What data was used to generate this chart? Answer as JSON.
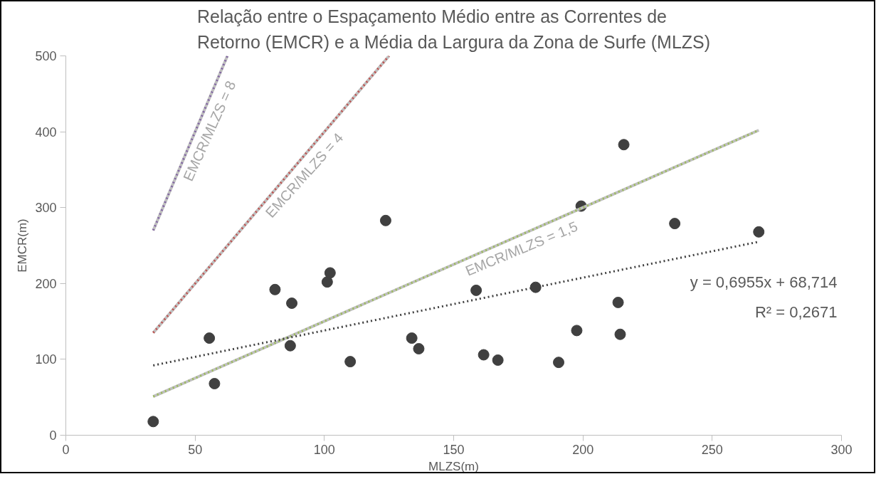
{
  "chart_data": {
    "type": "scatter",
    "title": "Relação entre o Espaçamento Médio entre as Correntes de Retorno (EMCR) e a Média da Largura da Zona de Surfe (MLZS)",
    "xlabel": "MLZS(m)",
    "ylabel": "EMCR(m)",
    "xlim": [
      0,
      300
    ],
    "xticks": [
      0,
      50,
      100,
      150,
      200,
      250,
      300
    ],
    "ylim": [
      0,
      500
    ],
    "yticks": [
      0,
      100,
      200,
      300,
      400,
      500
    ],
    "grid": false,
    "marker": "circle",
    "series": [
      {
        "color": "#404040",
        "x": [
          33.8,
          55.5,
          57.5,
          80.9,
          87.4,
          86.8,
          101.1,
          102.2,
          110,
          123.7,
          133.8,
          136.5,
          158.7,
          161.6,
          167.1,
          181.7,
          190.6,
          197.6,
          199.3,
          213.6,
          214.4,
          215.8,
          235.5,
          268
        ],
        "values": [
          18,
          128,
          68,
          192,
          174,
          118,
          202,
          214,
          97,
          283,
          128,
          114,
          191,
          106,
          99,
          195,
          96,
          138,
          302,
          175,
          133,
          383,
          279,
          268
        ]
      },
      {
        "type": "line",
        "name": "EMCR/MLZS = 8",
        "color": "#8064a2",
        "line_style": "dotted",
        "marker": "none",
        "x": [
          33.8,
          62.5
        ],
        "values": [
          270,
          500
        ]
      },
      {
        "type": "line",
        "name": "EMCR/MLZS = 4",
        "color": "#c0504d",
        "line_style": "dotted",
        "marker": "none",
        "x": [
          33.8,
          125
        ],
        "values": [
          135,
          500
        ]
      },
      {
        "type": "line",
        "name": "EMCR/MLZS = 1,5",
        "color": "#9bbb59",
        "line_style": "dotted",
        "marker": "none",
        "x": [
          33.8,
          268
        ],
        "values": [
          51,
          402
        ]
      },
      {
        "type": "line",
        "color": "#404040",
        "line_style": "dotted",
        "marker": "none",
        "x": [
          33.8,
          268
        ],
        "values": [
          92,
          255
        ]
      }
    ],
    "annotations": [
      "y = 0,6955x + 68,714",
      "R² = 0,2671"
    ]
  }
}
